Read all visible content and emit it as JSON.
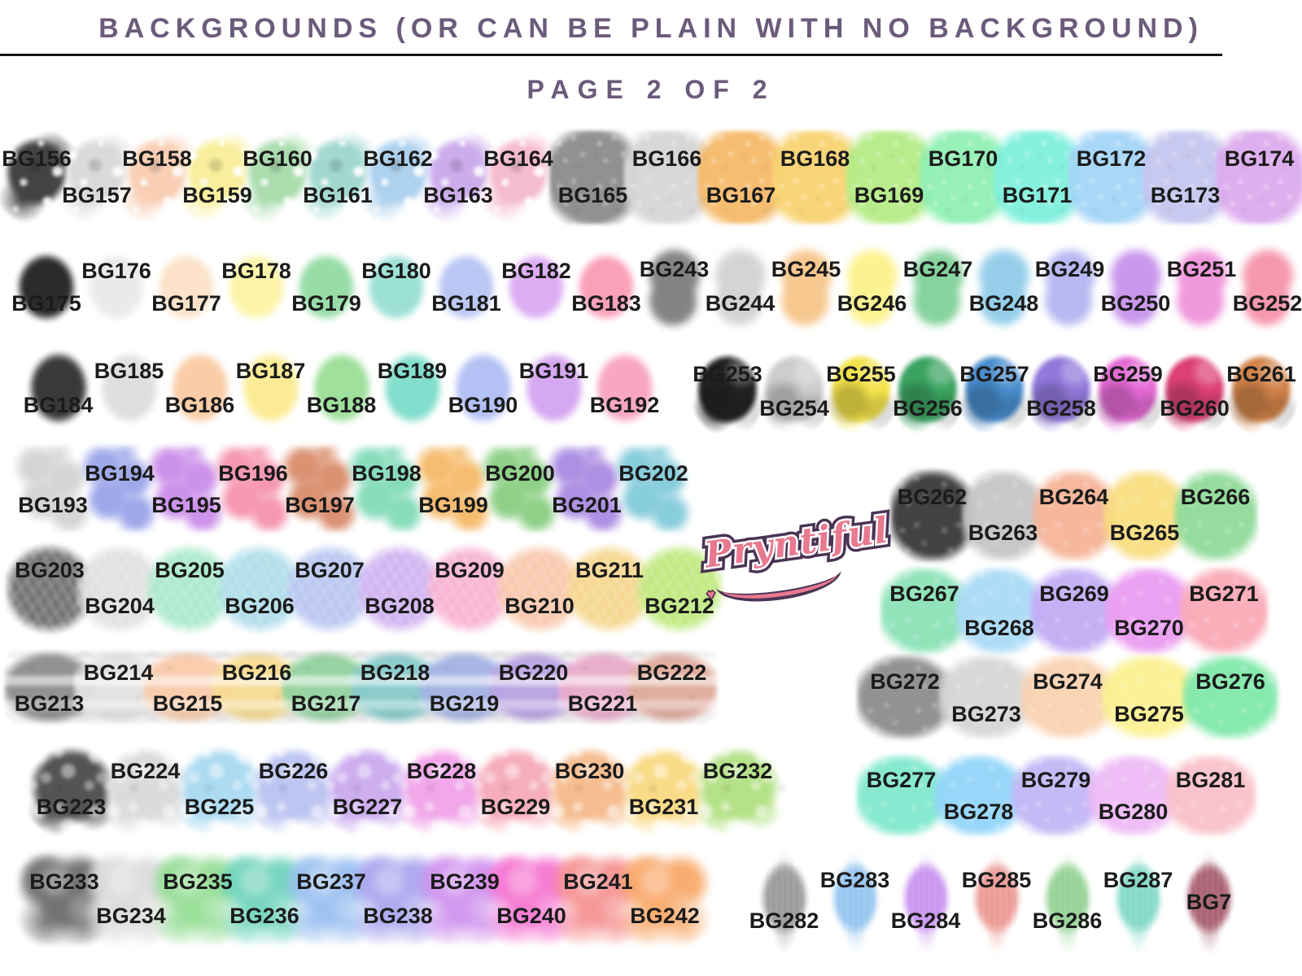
{
  "header": {
    "title": "BACKGROUNDS (OR CAN BE PLAIN WITH NO BACKGROUND)",
    "page_label": "PAGE 2 OF 2"
  },
  "logo": {
    "text": "Pryntiful",
    "heart": "♥"
  },
  "colors": {
    "title_text": "#6b5b7b",
    "label_text": "#1b1b1b",
    "divider": "#141414",
    "logo_pink": "#e8798f",
    "logo_outline": "#4a3454"
  },
  "groups": [
    {
      "id": "r1L",
      "texture": "splatter",
      "items": [
        {
          "label": "BG156",
          "color": "#3c3c3c",
          "pos": "high"
        },
        {
          "label": "BG157",
          "color": "#d9d9d9",
          "pos": "low"
        },
        {
          "label": "BG158",
          "color": "#f9cdb2",
          "pos": "high"
        },
        {
          "label": "BG159",
          "color": "#f8ee98",
          "pos": "low"
        },
        {
          "label": "BG160",
          "color": "#a8dcac",
          "pos": "high"
        },
        {
          "label": "BG161",
          "color": "#9fd7cf",
          "pos": "low"
        },
        {
          "label": "BG162",
          "color": "#abd0ee",
          "pos": "high"
        },
        {
          "label": "BG163",
          "color": "#caaaec",
          "pos": "low"
        },
        {
          "label": "BG164",
          "color": "#f5bacd",
          "pos": "high"
        }
      ]
    },
    {
      "id": "r1R",
      "texture": "speckle",
      "items": [
        {
          "label": "BG165",
          "color": "#8d8d8d",
          "pos": "low"
        },
        {
          "label": "BG166",
          "color": "#d7d7d7",
          "pos": "high"
        },
        {
          "label": "BG167",
          "color": "#f6bb6c",
          "pos": "low"
        },
        {
          "label": "BG168",
          "color": "#f9d474",
          "pos": "high"
        },
        {
          "label": "BG169",
          "color": "#b6ec88",
          "pos": "low"
        },
        {
          "label": "BG170",
          "color": "#92f0b5",
          "pos": "high"
        },
        {
          "label": "BG171",
          "color": "#82f0dd",
          "pos": "low"
        },
        {
          "label": "BG172",
          "color": "#a6d6f8",
          "pos": "high"
        },
        {
          "label": "BG173",
          "color": "#c6c7f0",
          "pos": "low"
        },
        {
          "label": "BG174",
          "color": "#ddacee",
          "pos": "high"
        }
      ]
    },
    {
      "id": "r2L",
      "texture": "oval",
      "items": [
        {
          "label": "BG175",
          "color": "#232323",
          "pos": "low"
        },
        {
          "label": "BG176",
          "color": "#eaeaea",
          "pos": "high"
        },
        {
          "label": "BG177",
          "color": "#fbe1c7",
          "pos": "low"
        },
        {
          "label": "BG178",
          "color": "#fcf4a6",
          "pos": "high"
        },
        {
          "label": "BG179",
          "color": "#94dca4",
          "pos": "low"
        },
        {
          "label": "BG180",
          "color": "#99dfd5",
          "pos": "high"
        },
        {
          "label": "BG181",
          "color": "#b8c5f4",
          "pos": "low"
        },
        {
          "label": "BG182",
          "color": "#dcaaf4",
          "pos": "high"
        },
        {
          "label": "BG183",
          "color": "#fa9db8",
          "pos": "low"
        }
      ]
    },
    {
      "id": "r2R",
      "texture": "blob",
      "items": [
        {
          "label": "BG243",
          "color": "#7e7e7e",
          "pos": "high"
        },
        {
          "label": "BG244",
          "color": "#d3d3d3",
          "pos": "low"
        },
        {
          "label": "BG245",
          "color": "#f7c68c",
          "pos": "high"
        },
        {
          "label": "BG246",
          "color": "#fbf28d",
          "pos": "low"
        },
        {
          "label": "BG247",
          "color": "#82d29a",
          "pos": "high"
        },
        {
          "label": "BG248",
          "color": "#92cdea",
          "pos": "low"
        },
        {
          "label": "BG249",
          "color": "#b6b6f2",
          "pos": "high"
        },
        {
          "label": "BG250",
          "color": "#c794ec",
          "pos": "low"
        },
        {
          "label": "BG251",
          "color": "#f094db",
          "pos": "high"
        },
        {
          "label": "BG252",
          "color": "#f694ac",
          "pos": "low"
        }
      ]
    },
    {
      "id": "r3L",
      "texture": "round",
      "items": [
        {
          "label": "BG184",
          "color": "#313131",
          "pos": "low"
        },
        {
          "label": "BG185",
          "color": "#dedede",
          "pos": "high"
        },
        {
          "label": "BG186",
          "color": "#facba4",
          "pos": "low"
        },
        {
          "label": "BG187",
          "color": "#fbeb92",
          "pos": "high"
        },
        {
          "label": "BG188",
          "color": "#9bdf98",
          "pos": "low"
        },
        {
          "label": "BG189",
          "color": "#7eddcb",
          "pos": "high"
        },
        {
          "label": "BG190",
          "color": "#b1bff4",
          "pos": "low"
        },
        {
          "label": "BG191",
          "color": "#d5a4f2",
          "pos": "high"
        },
        {
          "label": "BG192",
          "color": "#f9a4bf",
          "pos": "low"
        }
      ]
    },
    {
      "id": "r3R",
      "texture": "daub",
      "items": [
        {
          "label": "BG253",
          "color": "#1a1a1a",
          "pos": "high"
        },
        {
          "label": "BG254",
          "color": "#cbcbcb",
          "pos": "low"
        },
        {
          "label": "BG255",
          "color": "#f3e143",
          "pos": "high"
        },
        {
          "label": "BG256",
          "color": "#33a05b",
          "pos": "low"
        },
        {
          "label": "BG257",
          "color": "#4188cb",
          "pos": "high"
        },
        {
          "label": "BG258",
          "color": "#8d73da",
          "pos": "low"
        },
        {
          "label": "BG259",
          "color": "#e364d3",
          "pos": "high"
        },
        {
          "label": "BG260",
          "color": "#db3972",
          "pos": "low"
        },
        {
          "label": "BG261",
          "color": "#d07e42",
          "pos": "high"
        }
      ]
    },
    {
      "id": "r4L",
      "texture": "splotch",
      "items": [
        {
          "label": "BG193",
          "color": "#d4d4d4",
          "pos": "low"
        },
        {
          "label": "BG194",
          "color": "#9ca6ea",
          "pos": "high"
        },
        {
          "label": "BG195",
          "color": "#cb8eea",
          "pos": "low"
        },
        {
          "label": "BG196",
          "color": "#f694b0",
          "pos": "high"
        },
        {
          "label": "BG197",
          "color": "#da8e6e",
          "pos": "low"
        },
        {
          "label": "BG198",
          "color": "#83dbba",
          "pos": "high"
        },
        {
          "label": "BG199",
          "color": "#f6bb6c",
          "pos": "low"
        },
        {
          "label": "BG200",
          "color": "#8bcf84",
          "pos": "high"
        },
        {
          "label": "BG201",
          "color": "#ab8be2",
          "pos": "low"
        },
        {
          "label": "BG202",
          "color": "#84cbdb",
          "pos": "high"
        }
      ]
    },
    {
      "id": "r4R",
      "texture": "block",
      "items": [
        {
          "label": "BG262",
          "color": "#3b3b3b",
          "pos": "high"
        },
        {
          "label": "BG263",
          "color": "#c6c6c6",
          "pos": "low"
        },
        {
          "label": "BG264",
          "color": "#f6b59a",
          "pos": "high"
        },
        {
          "label": "BG265",
          "color": "#f9de82",
          "pos": "low"
        },
        {
          "label": "BG266",
          "color": "#92db9b",
          "pos": "high"
        }
      ]
    },
    {
      "id": "r5L",
      "texture": "leafy",
      "items": [
        {
          "label": "BG203",
          "color": "#6e6e6e",
          "pos": "high"
        },
        {
          "label": "BG204",
          "color": "#e0e0e0",
          "pos": "low"
        },
        {
          "label": "BG205",
          "color": "#a8e9cb",
          "pos": "high"
        },
        {
          "label": "BG206",
          "color": "#aedde9",
          "pos": "low"
        },
        {
          "label": "BG207",
          "color": "#b8c5f1",
          "pos": "high"
        },
        {
          "label": "BG208",
          "color": "#d0b2f1",
          "pos": "low"
        },
        {
          "label": "BG209",
          "color": "#f8b2d2",
          "pos": "high"
        },
        {
          "label": "BG210",
          "color": "#f9c7ab",
          "pos": "low"
        },
        {
          "label": "BG211",
          "color": "#f6d68c",
          "pos": "high"
        },
        {
          "label": "BG212",
          "color": "#bee97c",
          "pos": "low"
        }
      ]
    },
    {
      "id": "r5R",
      "texture": "block",
      "items": [
        {
          "label": "BG267",
          "color": "#8de2b8",
          "pos": "high"
        },
        {
          "label": "BG268",
          "color": "#abdbf6",
          "pos": "low"
        },
        {
          "label": "BG269",
          "color": "#c3adf4",
          "pos": "high"
        },
        {
          "label": "BG270",
          "color": "#eb9ef2",
          "pos": "low"
        },
        {
          "label": "BG271",
          "color": "#faabb8",
          "pos": "high"
        }
      ]
    },
    {
      "id": "r6L",
      "texture": "band",
      "items": [
        {
          "label": "BG213",
          "color": "#8e8e8e",
          "pos": "low"
        },
        {
          "label": "BG214",
          "color": "#e2e2e2",
          "pos": "high"
        },
        {
          "label": "BG215",
          "color": "#f9cbab",
          "pos": "low"
        },
        {
          "label": "BG216",
          "color": "#f7db92",
          "pos": "high"
        },
        {
          "label": "BG217",
          "color": "#94d2a0",
          "pos": "low"
        },
        {
          "label": "BG218",
          "color": "#88cbcb",
          "pos": "high"
        },
        {
          "label": "BG219",
          "color": "#a4b3e3",
          "pos": "low"
        },
        {
          "label": "BG220",
          "color": "#bba4e3",
          "pos": "high"
        },
        {
          "label": "BG221",
          "color": "#eaabcb",
          "pos": "low"
        },
        {
          "label": "BG222",
          "color": "#e0ab9d",
          "pos": "high"
        }
      ]
    },
    {
      "id": "r6R",
      "texture": "block",
      "items": [
        {
          "label": "BG272",
          "color": "#8e8e8e",
          "pos": "high"
        },
        {
          "label": "BG273",
          "color": "#d7d7d7",
          "pos": "low"
        },
        {
          "label": "BG274",
          "color": "#f9d3b3",
          "pos": "high"
        },
        {
          "label": "BG275",
          "color": "#fbf192",
          "pos": "low"
        },
        {
          "label": "BG276",
          "color": "#82e9ab",
          "pos": "high"
        }
      ]
    },
    {
      "id": "r7L",
      "texture": "bubble",
      "items": [
        {
          "label": "BG223",
          "color": "#4e4e4e",
          "pos": "low"
        },
        {
          "label": "BG224",
          "color": "#dadada",
          "pos": "high"
        },
        {
          "label": "BG225",
          "color": "#abdaf1",
          "pos": "low"
        },
        {
          "label": "BG226",
          "color": "#bbc3f1",
          "pos": "high"
        },
        {
          "label": "BG227",
          "color": "#cbabef",
          "pos": "low"
        },
        {
          "label": "BG228",
          "color": "#f1a4e9",
          "pos": "high"
        },
        {
          "label": "BG229",
          "color": "#f6abba",
          "pos": "low"
        },
        {
          "label": "BG230",
          "color": "#f6bb8c",
          "pos": "high"
        },
        {
          "label": "BG231",
          "color": "#f9da84",
          "pos": "low"
        },
        {
          "label": "BG232",
          "color": "#b3e184",
          "pos": "high"
        }
      ]
    },
    {
      "id": "r7R",
      "texture": "block",
      "items": [
        {
          "label": "BG277",
          "color": "#83e9cf",
          "pos": "high"
        },
        {
          "label": "BG278",
          "color": "#94d6f9",
          "pos": "low"
        },
        {
          "label": "BG279",
          "color": "#c3b8f6",
          "pos": "high"
        },
        {
          "label": "BG280",
          "color": "#efbcf6",
          "pos": "low"
        },
        {
          "label": "BG281",
          "color": "#fac2ca",
          "pos": "high"
        }
      ]
    },
    {
      "id": "r8L",
      "texture": "cloud",
      "items": [
        {
          "label": "BG233",
          "color": "#6e6e6e",
          "pos": "high"
        },
        {
          "label": "BG234",
          "color": "#dcdcdc",
          "pos": "low"
        },
        {
          "label": "BG235",
          "color": "#97de97",
          "pos": "high"
        },
        {
          "label": "BG236",
          "color": "#73d5be",
          "pos": "low"
        },
        {
          "label": "BG237",
          "color": "#9cc1f1",
          "pos": "high"
        },
        {
          "label": "BG238",
          "color": "#aca7ef",
          "pos": "low"
        },
        {
          "label": "BG239",
          "color": "#d194ef",
          "pos": "high"
        },
        {
          "label": "BG240",
          "color": "#f678d2",
          "pos": "low"
        },
        {
          "label": "BG241",
          "color": "#f69494",
          "pos": "high"
        },
        {
          "label": "BG242",
          "color": "#f9aa6c",
          "pos": "low"
        }
      ]
    },
    {
      "id": "r8R",
      "texture": "drip",
      "items": [
        {
          "label": "BG282",
          "color": "#8e8e8e",
          "pos": "low"
        },
        {
          "label": "BG283",
          "color": "#88beee",
          "pos": "high"
        },
        {
          "label": "BG284",
          "color": "#c387ee",
          "pos": "low"
        },
        {
          "label": "BG285",
          "color": "#e98e88",
          "pos": "high"
        },
        {
          "label": "BG286",
          "color": "#88cd88",
          "pos": "low"
        },
        {
          "label": "BG287",
          "color": "#73d5c2",
          "pos": "high"
        },
        {
          "label": "BG7",
          "color": "#9d4c60",
          "pos": "mid"
        }
      ]
    }
  ]
}
